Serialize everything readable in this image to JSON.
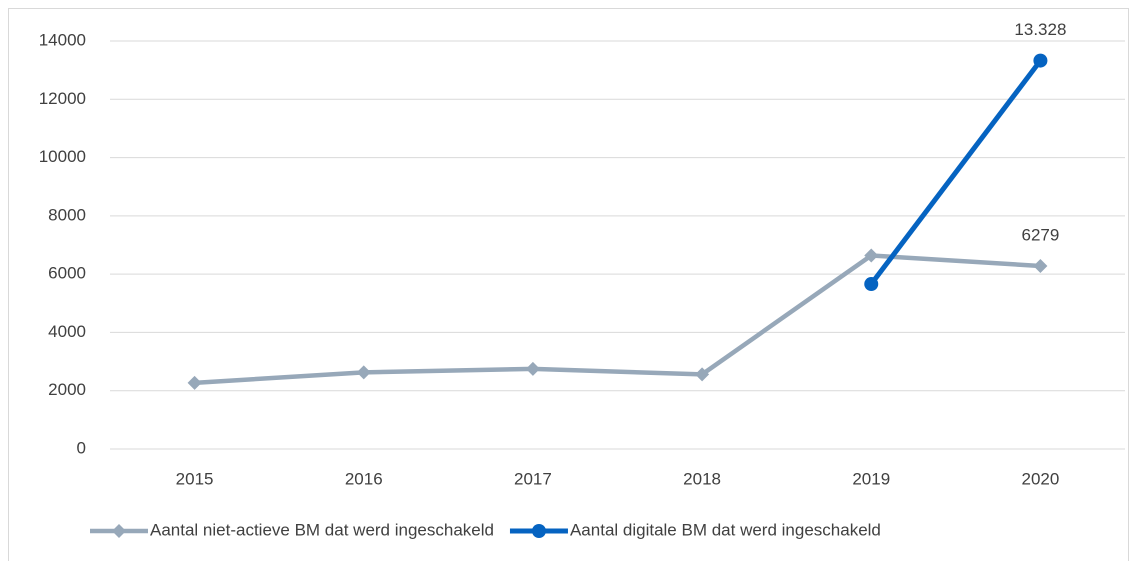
{
  "chart_data": {
    "type": "line",
    "categories": [
      "2015",
      "2016",
      "2017",
      "2018",
      "2019",
      "2020"
    ],
    "series": [
      {
        "name": "Aantal niet-actieve BM dat werd ingeschakeld",
        "color": "#97a8b9",
        "marker": "diamond",
        "values": [
          2270,
          2630,
          2750,
          2560,
          6640,
          6279
        ],
        "value_labels": [
          null,
          null,
          null,
          null,
          null,
          "6279"
        ]
      },
      {
        "name": "Aantal digitale BM dat werd ingeschakeld",
        "color": "#0563c1",
        "marker": "circle",
        "values": [
          null,
          null,
          null,
          null,
          5660,
          13328
        ],
        "value_labels": [
          null,
          null,
          null,
          null,
          null,
          "13.328"
        ]
      }
    ],
    "ylim": [
      0,
      14000
    ],
    "yticks": [
      0,
      2000,
      4000,
      6000,
      8000,
      10000,
      12000,
      14000
    ],
    "grid": true,
    "legend": "bottom"
  }
}
